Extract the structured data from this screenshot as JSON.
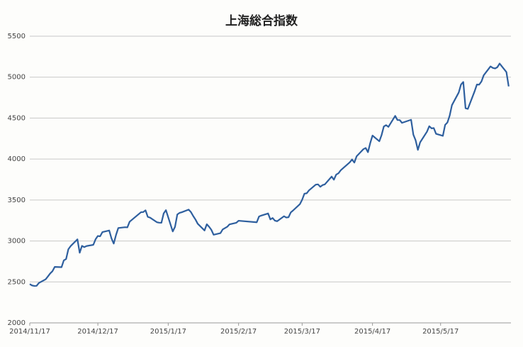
{
  "chart_data": {
    "type": "line",
    "title": "上海総合指数",
    "x": [
      "2014/11/17",
      "2014/11/18",
      "2014/11/19",
      "2014/11/20",
      "2014/11/21",
      "2014/11/24",
      "2014/11/25",
      "2014/11/26",
      "2014/11/27",
      "2014/11/28",
      "2014/12/1",
      "2014/12/2",
      "2014/12/3",
      "2014/12/4",
      "2014/12/5",
      "2014/12/8",
      "2014/12/9",
      "2014/12/10",
      "2014/12/11",
      "2014/12/12",
      "2014/12/15",
      "2014/12/16",
      "2014/12/17",
      "2014/12/18",
      "2014/12/19",
      "2014/12/22",
      "2014/12/23",
      "2014/12/24",
      "2014/12/25",
      "2014/12/26",
      "2014/12/29",
      "2014/12/30",
      "2014/12/31",
      "2015/1/5",
      "2015/1/6",
      "2015/1/7",
      "2015/1/8",
      "2015/1/9",
      "2015/1/12",
      "2015/1/13",
      "2015/1/14",
      "2015/1/15",
      "2015/1/16",
      "2015/1/19",
      "2015/1/20",
      "2015/1/21",
      "2015/1/22",
      "2015/1/23",
      "2015/1/26",
      "2015/1/27",
      "2015/1/28",
      "2015/1/29",
      "2015/1/30",
      "2015/2/2",
      "2015/2/3",
      "2015/2/4",
      "2015/2/5",
      "2015/2/6",
      "2015/2/9",
      "2015/2/10",
      "2015/2/11",
      "2015/2/12",
      "2015/2/13",
      "2015/2/16",
      "2015/2/17",
      "2015/2/25",
      "2015/2/26",
      "2015/2/27",
      "2015/3/2",
      "2015/3/3",
      "2015/3/4",
      "2015/3/5",
      "2015/3/6",
      "2015/3/9",
      "2015/3/10",
      "2015/3/11",
      "2015/3/12",
      "2015/3/13",
      "2015/3/16",
      "2015/3/17",
      "2015/3/18",
      "2015/3/19",
      "2015/3/20",
      "2015/3/23",
      "2015/3/24",
      "2015/3/25",
      "2015/3/26",
      "2015/3/27",
      "2015/3/30",
      "2015/3/31",
      "2015/4/1",
      "2015/4/2",
      "2015/4/3",
      "2015/4/7",
      "2015/4/8",
      "2015/4/9",
      "2015/4/10",
      "2015/4/13",
      "2015/4/14",
      "2015/4/15",
      "2015/4/16",
      "2015/4/17",
      "2015/4/20",
      "2015/4/21",
      "2015/4/22",
      "2015/4/23",
      "2015/4/24",
      "2015/4/27",
      "2015/4/28",
      "2015/4/29",
      "2015/4/30",
      "2015/5/4",
      "2015/5/5",
      "2015/5/6",
      "2015/5/7",
      "2015/5/8",
      "2015/5/11",
      "2015/5/12",
      "2015/5/13",
      "2015/5/14",
      "2015/5/15",
      "2015/5/18",
      "2015/5/19",
      "2015/5/20",
      "2015/5/21",
      "2015/5/22",
      "2015/5/25",
      "2015/5/26",
      "2015/5/27",
      "2015/5/28",
      "2015/5/29",
      "2015/6/1",
      "2015/6/2",
      "2015/6/3",
      "2015/6/4",
      "2015/6/5",
      "2015/6/8",
      "2015/6/9",
      "2015/6/10",
      "2015/6/11",
      "2015/6/12",
      "2015/6/15",
      "2015/6/16"
    ],
    "series": [
      {
        "color": "#2e5f9e",
        "values": [
          2474,
          2457,
          2451,
          2452,
          2487,
          2532,
          2567,
          2604,
          2631,
          2683,
          2680,
          2763,
          2779,
          2899,
          2937,
          3020,
          2856,
          2940,
          2925,
          2938,
          2953,
          3021,
          3061,
          3057,
          3108,
          3128,
          3032,
          2968,
          3073,
          3158,
          3168,
          3166,
          3235,
          3351,
          3353,
          3374,
          3294,
          3285,
          3229,
          3223,
          3222,
          3336,
          3376,
          3116,
          3173,
          3323,
          3343,
          3351,
          3383,
          3353,
          3305,
          3262,
          3210,
          3128,
          3204,
          3174,
          3136,
          3076,
          3095,
          3141,
          3157,
          3173,
          3203,
          3222,
          3247,
          3228,
          3298,
          3310,
          3336,
          3263,
          3280,
          3248,
          3241,
          3302,
          3286,
          3290,
          3349,
          3372,
          3449,
          3503,
          3577,
          3582,
          3617,
          3688,
          3691,
          3661,
          3682,
          3691,
          3786,
          3748,
          3810,
          3826,
          3863,
          3961,
          3995,
          3957,
          4034,
          4121,
          4135,
          4084,
          4195,
          4287,
          4217,
          4293,
          4398,
          4414,
          4393,
          4527,
          4476,
          4476,
          4442,
          4480,
          4298,
          4229,
          4112,
          4205,
          4334,
          4401,
          4375,
          4378,
          4308,
          4283,
          4417,
          4446,
          4530,
          4658,
          4813,
          4910,
          4941,
          4620,
          4612,
          4828,
          4910,
          4909,
          4947,
          5023,
          5131,
          5113,
          5106,
          5121,
          5166,
          5062,
          4887
        ]
      }
    ],
    "xlim": [
      "2014/11/17",
      "2015/6/17"
    ],
    "xticks": [
      "2014/11/17",
      "2014/12/17",
      "2015/1/17",
      "2015/2/17",
      "2015/3/17",
      "2015/4/17",
      "2015/5/17"
    ],
    "ylim": [
      2000,
      5500
    ],
    "yticks": [
      2000,
      2500,
      3000,
      3500,
      4000,
      4500,
      5000,
      5500
    ],
    "grid": true
  }
}
